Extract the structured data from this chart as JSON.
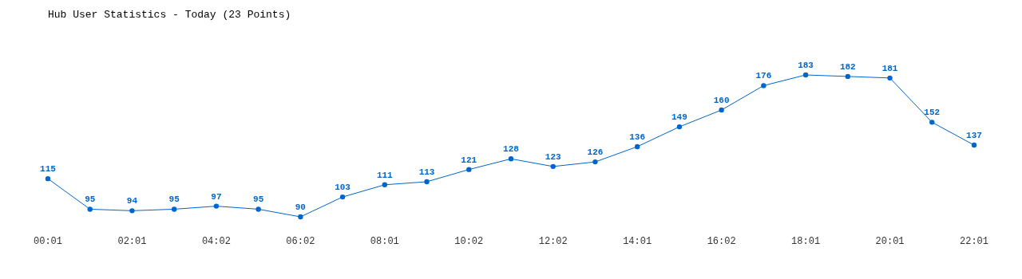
{
  "chart_data": {
    "type": "line",
    "title": "Hub User Statistics - Today (23 Points)",
    "categories": [
      "00:01",
      null,
      "02:01",
      null,
      "04:02",
      null,
      "06:02",
      null,
      "08:01",
      null,
      "10:02",
      null,
      "12:02",
      null,
      "14:01",
      null,
      "16:02",
      null,
      "18:01",
      null,
      "20:01",
      null,
      "22:01"
    ],
    "series": [
      {
        "color": "#0066cc",
        "values": [
          115,
          95,
          94,
          95,
          97,
          95,
          90,
          103,
          111,
          113,
          121,
          128,
          123,
          126,
          136,
          149,
          160,
          176,
          183,
          182,
          181,
          152,
          137
        ]
      }
    ],
    "data_labels": true,
    "marker": "circle"
  }
}
